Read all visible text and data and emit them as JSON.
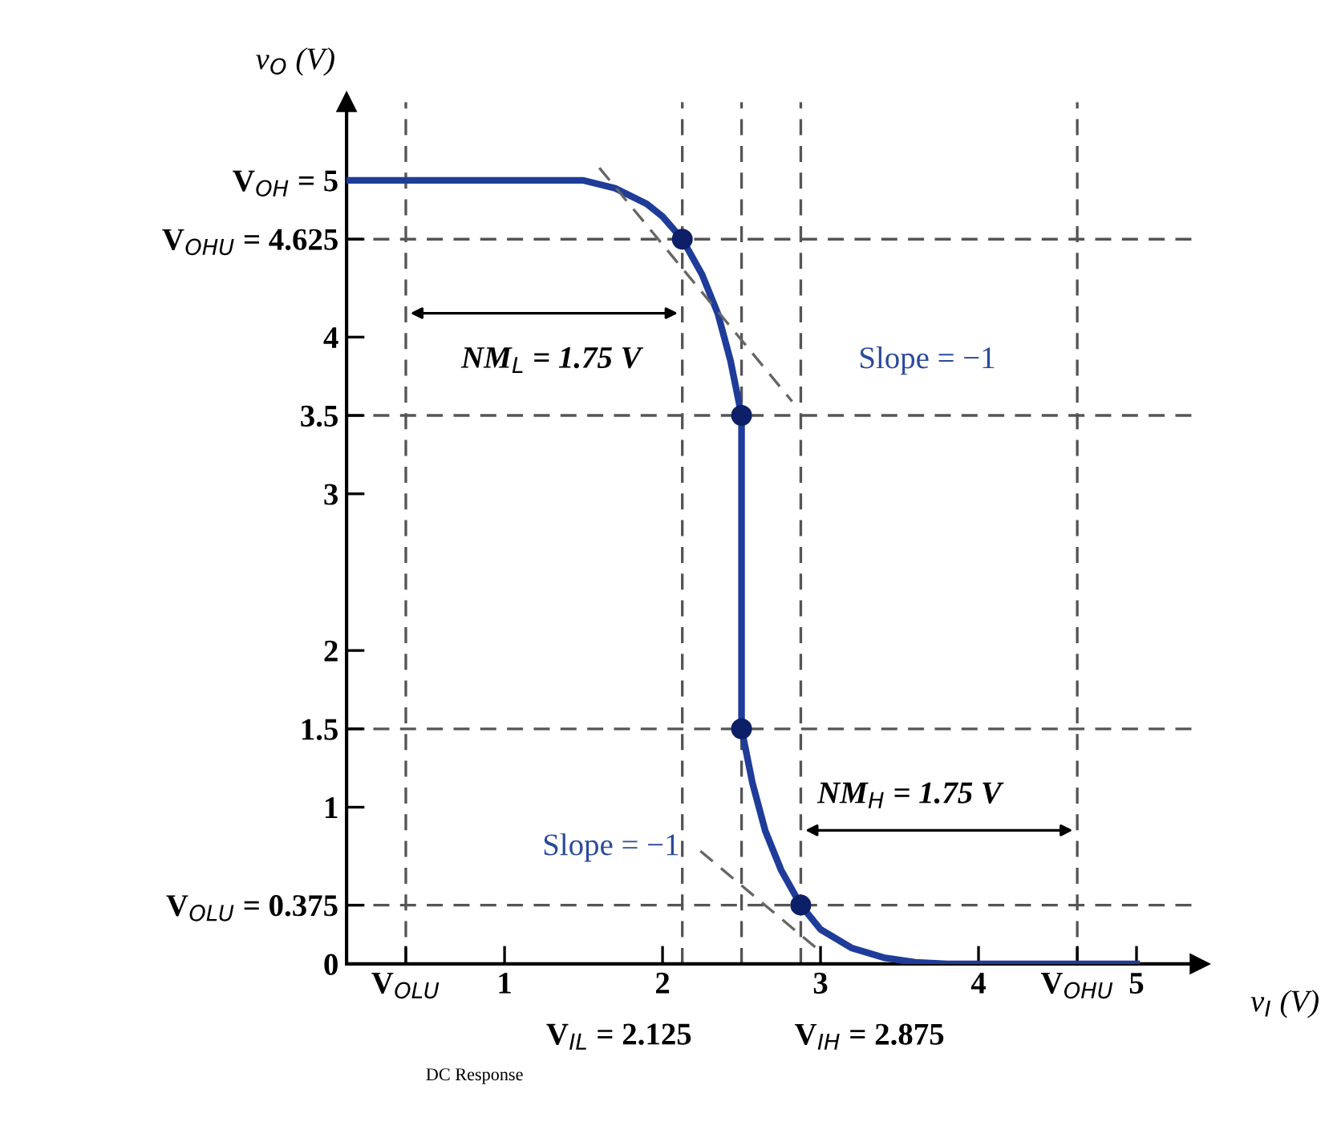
{
  "chart_data": {
    "type": "line",
    "xlabel": "v$_{I}$ (V)",
    "ylabel": "v$_{O}$ (V)",
    "xlim": [
      0,
      5.4
    ],
    "ylim": [
      0,
      5.5
    ],
    "xticks": [
      {
        "value": 0.375,
        "label": "V$_{OLU}$"
      },
      1,
      2,
      3,
      4,
      {
        "value": 4.625,
        "label": "V$_{OHU}$"
      },
      5
    ],
    "yticks": [
      0,
      {
        "value": 0.375,
        "label": "V$_{OLU}$ = 0.375"
      },
      1,
      1.5,
      2,
      3,
      3.5,
      4,
      {
        "value": 4.625,
        "label": "V$_{OHU}$ = 4.625"
      },
      {
        "value": 5,
        "label": "V$_{OH}$ = 5"
      }
    ],
    "series": [
      {
        "color": "#1f3c99",
        "marker": "none",
        "line_style": "solid",
        "x": [
          0,
          1.5,
          1.7,
          1.9,
          2.0,
          2.125,
          2.25,
          2.35,
          2.43,
          2.5,
          2.5,
          2.57,
          2.65,
          2.75,
          2.875,
          3.0,
          3.2,
          3.4,
          3.6,
          3.8,
          5
        ],
        "values": [
          5,
          5,
          4.95,
          4.85,
          4.77,
          4.625,
          4.4,
          4.15,
          3.85,
          3.5,
          1.5,
          1.15,
          0.85,
          0.6,
          0.375,
          0.22,
          0.1,
          0.04,
          0.01,
          0,
          0
        ]
      },
      {
        "type": "scatter",
        "color": "#0d1f66",
        "marker": "circle",
        "x": [
          2.125,
          2.5,
          2.5,
          2.875
        ],
        "values": [
          4.625,
          3.5,
          1.5,
          0.375
        ]
      },
      {
        "type": "line",
        "color": "#666666",
        "marker": "none",
        "line_style": "dashed",
        "x": [
          1.6,
          2.82
        ],
        "values": [
          5.08,
          3.59
        ]
      },
      {
        "type": "line",
        "color": "#666666",
        "marker": "none",
        "line_style": "dashed",
        "x": [
          2.24,
          3.01
        ],
        "values": [
          0.72,
          0.07
        ]
      }
    ],
    "ref_lines": [
      {
        "axis": "y",
        "value": 4.625,
        "line_style": "dashed"
      },
      {
        "axis": "y",
        "value": 3.5,
        "line_style": "dashed"
      },
      {
        "axis": "y",
        "value": 1.5,
        "line_style": "dashed"
      },
      {
        "axis": "y",
        "value": 0.375,
        "line_style": "dashed"
      },
      {
        "axis": "x",
        "value": 0.375,
        "line_style": "dashed"
      },
      {
        "axis": "x",
        "value": 2.125,
        "line_style": "dashed"
      },
      {
        "axis": "x",
        "value": 2.5,
        "line_style": "dashed"
      },
      {
        "axis": "x",
        "value": 2.875,
        "line_style": "dashed"
      },
      {
        "axis": "x",
        "value": 4.625,
        "line_style": "dashed"
      }
    ],
    "annotations": [
      "Slope = −1",
      "Slope = −1",
      "NM$_{L}$ = 1.75 V",
      "NM$_{H}$ = 1.75 V",
      "V$_{IL}$ = 2.125",
      "V$_{IH}$ = 2.875",
      "DC Response"
    ],
    "grid": false
  }
}
